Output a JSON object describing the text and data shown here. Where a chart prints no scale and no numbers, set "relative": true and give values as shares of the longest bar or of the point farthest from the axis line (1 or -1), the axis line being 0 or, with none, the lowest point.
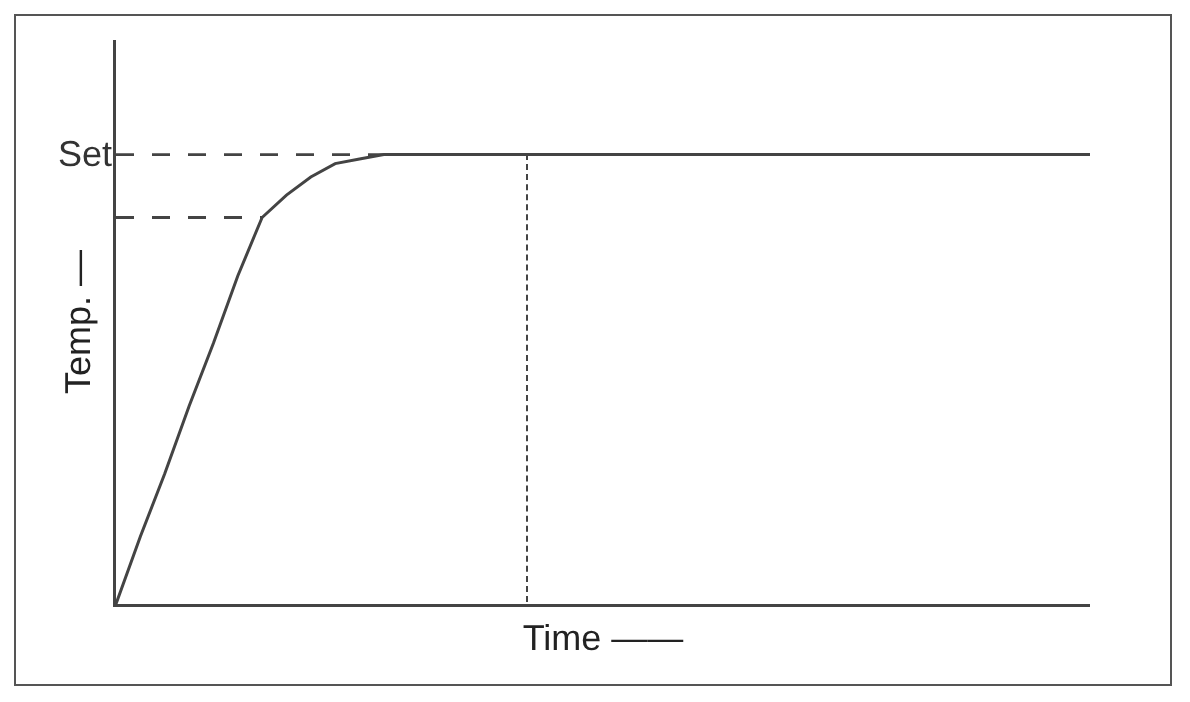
{
  "chart_data": {
    "type": "line",
    "relative": true,
    "xlabel": "Time ——",
    "ylabel": "Temp. —",
    "categories": [
      null,
      null,
      null,
      null,
      null,
      null,
      null,
      null,
      null,
      null,
      null,
      null,
      null,
      null,
      null,
      null,
      null,
      null,
      null,
      null,
      null,
      null,
      null,
      null,
      null,
      null,
      null,
      null,
      null,
      null,
      null,
      null,
      null,
      null,
      null,
      null,
      null,
      null,
      null,
      null,
      null
    ],
    "series": [
      {
        "color": "#444444",
        "line_style": "solid",
        "values": [
          0,
          0.15,
          0.29,
          0.44,
          0.58,
          0.73,
          0.86,
          0.91,
          0.95,
          0.98,
          0.99,
          1,
          1,
          1,
          1,
          1,
          1,
          1,
          1,
          1,
          1,
          1,
          1,
          1,
          1,
          1,
          1,
          1,
          1,
          1,
          1,
          1,
          1,
          1,
          1,
          1,
          1,
          1,
          1,
          1,
          1
        ]
      },
      {
        "color": "#444444",
        "line_style": "dashed",
        "values": [
          0.86,
          0.86,
          0.86,
          0.86,
          0.86,
          0.86,
          0.86,
          null,
          null,
          null,
          null,
          null,
          null,
          null,
          null,
          null,
          null,
          null,
          null,
          null,
          null,
          null,
          null,
          null,
          null,
          null,
          null,
          null,
          null,
          null,
          null,
          null,
          null,
          null,
          null,
          null,
          null,
          null,
          null,
          null,
          null
        ]
      }
    ],
    "ref_lines": [
      {
        "axis": "y",
        "value": 1,
        "label": "Set",
        "line_style": "dashed",
        "color": "#444444"
      }
    ],
    "marker": "none"
  }
}
